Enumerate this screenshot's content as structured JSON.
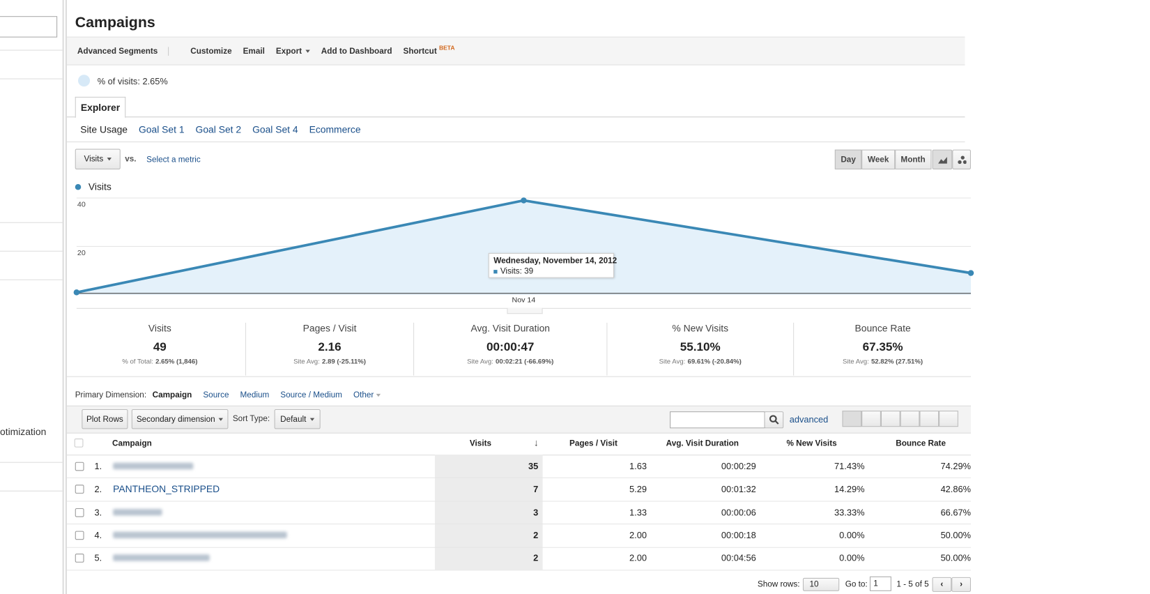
{
  "sidebar": {
    "item": "otimization"
  },
  "header": {
    "title": "Campaigns",
    "toolbar": [
      "Advanced Segments",
      "Customize",
      "Email",
      "Export",
      "Add to Dashboard",
      "Shortcut"
    ],
    "beta": "BETA"
  },
  "segment": {
    "label": "% of visits: 2.65%"
  },
  "tabs": {
    "active": "Explorer"
  },
  "subtabs": [
    "Site Usage",
    "Goal Set 1",
    "Goal Set 2",
    "Goal Set 4",
    "Ecommerce"
  ],
  "metric_picker": {
    "metric": "Visits",
    "vs": "vs.",
    "select": "Select a metric"
  },
  "granularity": [
    "Day",
    "Week",
    "Month"
  ],
  "chart_data": {
    "type": "line",
    "categories": [
      null,
      "Nov 14",
      null
    ],
    "series": [
      {
        "name": "Visits",
        "color": "#3a88b5",
        "values": [
          1,
          39,
          9
        ]
      }
    ],
    "ylim": [
      0,
      40
    ],
    "yticks": [
      20,
      40
    ],
    "grid": true,
    "tooltip": {
      "date": "Wednesday, November 14, 2012",
      "label": "Visits: 39"
    }
  },
  "scorecards": [
    {
      "name": "Visits",
      "value": "49",
      "prefix": "% of Total:",
      "detail": "2.65% (1,846)"
    },
    {
      "name": "Pages / Visit",
      "value": "2.16",
      "prefix": "Site Avg:",
      "detail": "2.89 (-25.11%)"
    },
    {
      "name": "Avg. Visit Duration",
      "value": "00:00:47",
      "prefix": "Site Avg:",
      "detail": "00:02:21 (-66.69%)"
    },
    {
      "name": "% New Visits",
      "value": "55.10%",
      "prefix": "Site Avg:",
      "detail": "69.61% (-20.84%)"
    },
    {
      "name": "Bounce Rate",
      "value": "67.35%",
      "prefix": "Site Avg:",
      "detail": "52.82% (27.51%)"
    }
  ],
  "dimensions": {
    "label": "Primary Dimension:",
    "options": [
      "Campaign",
      "Source",
      "Medium",
      "Source / Medium",
      "Other"
    ]
  },
  "controls": {
    "plot": "Plot Rows",
    "secondary": "Secondary dimension",
    "sort_label": "Sort Type:",
    "sort": "Default",
    "advanced": "advanced"
  },
  "table": {
    "columns": [
      "Campaign",
      "Visits",
      "Pages / Visit",
      "Avg. Visit Duration",
      "% New Visits",
      "Bounce Rate"
    ],
    "rows": [
      [
        "1.",
        null,
        "35",
        "1.63",
        "00:00:29",
        "71.43%",
        "74.29%"
      ],
      [
        "2.",
        "PANTHEON_STRIPPED",
        "7",
        "5.29",
        "00:01:32",
        "14.29%",
        "42.86%"
      ],
      [
        "3.",
        null,
        "3",
        "1.33",
        "00:00:06",
        "33.33%",
        "66.67%"
      ],
      [
        "4.",
        null,
        "2",
        "2.00",
        "00:00:18",
        "0.00%",
        "50.00%"
      ],
      [
        "5.",
        null,
        "2",
        "2.00",
        "00:04:56",
        "0.00%",
        "50.00%"
      ]
    ]
  },
  "footer": {
    "show_rows": "Show rows:",
    "rows": "10",
    "goto": "Go to:",
    "page": "1",
    "range": "1 - 5 of 5"
  }
}
